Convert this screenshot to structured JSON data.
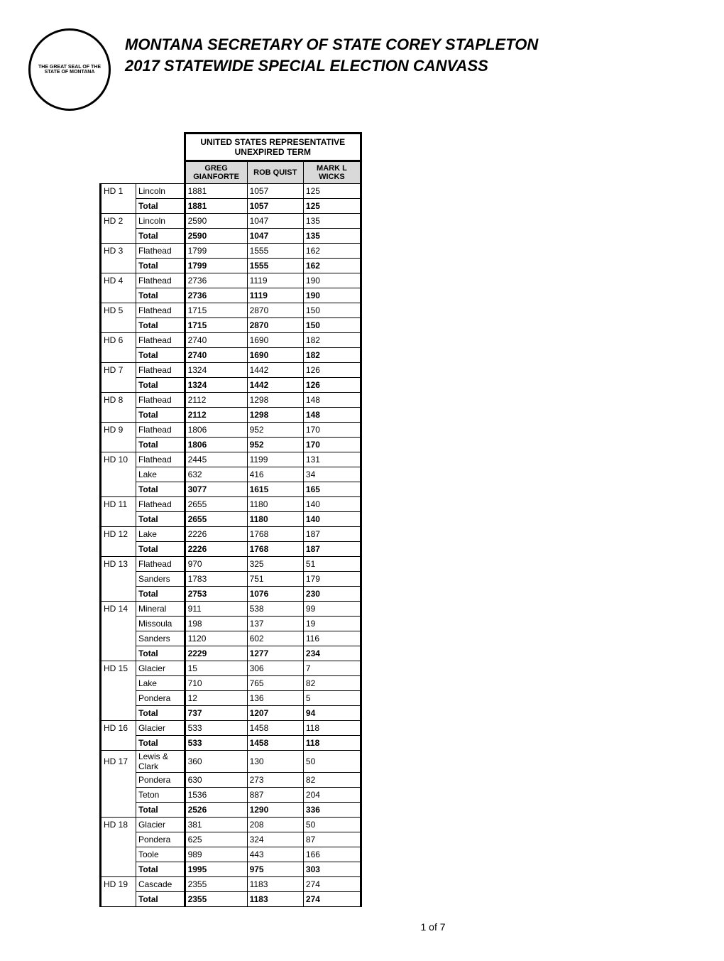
{
  "header": {
    "title_line1": "MONTANA SECRETARY OF STATE COREY STAPLETON",
    "title_line2": "2017 STATEWIDE SPECIAL ELECTION CANVASS",
    "seal_label": "State Seal"
  },
  "table": {
    "main_header_line1": "UNITED STATES REPRESENTATIVE",
    "main_header_line2": "UNEXPIRED TERM",
    "candidates": [
      {
        "line1": "GREG",
        "line2": "GIANFORTE"
      },
      {
        "line1": "ROB QUIST",
        "line2": ""
      },
      {
        "line1": "MARK L",
        "line2": "WICKS"
      }
    ],
    "districts": [
      {
        "id": "HD 1",
        "rows": [
          {
            "county": "Lincoln",
            "values": [
              "1881",
              "1057",
              "125"
            ]
          },
          {
            "county": "Total",
            "values": [
              "1881",
              "1057",
              "125"
            ],
            "is_total": true
          }
        ]
      },
      {
        "id": "HD 2",
        "rows": [
          {
            "county": "Lincoln",
            "values": [
              "2590",
              "1047",
              "135"
            ]
          },
          {
            "county": "Total",
            "values": [
              "2590",
              "1047",
              "135"
            ],
            "is_total": true
          }
        ]
      },
      {
        "id": "HD 3",
        "rows": [
          {
            "county": "Flathead",
            "values": [
              "1799",
              "1555",
              "162"
            ]
          },
          {
            "county": "Total",
            "values": [
              "1799",
              "1555",
              "162"
            ],
            "is_total": true
          }
        ]
      },
      {
        "id": "HD 4",
        "rows": [
          {
            "county": "Flathead",
            "values": [
              "2736",
              "1119",
              "190"
            ]
          },
          {
            "county": "Total",
            "values": [
              "2736",
              "1119",
              "190"
            ],
            "is_total": true
          }
        ]
      },
      {
        "id": "HD 5",
        "rows": [
          {
            "county": "Flathead",
            "values": [
              "1715",
              "2870",
              "150"
            ]
          },
          {
            "county": "Total",
            "values": [
              "1715",
              "2870",
              "150"
            ],
            "is_total": true
          }
        ]
      },
      {
        "id": "HD 6",
        "rows": [
          {
            "county": "Flathead",
            "values": [
              "2740",
              "1690",
              "182"
            ]
          },
          {
            "county": "Total",
            "values": [
              "2740",
              "1690",
              "182"
            ],
            "is_total": true
          }
        ]
      },
      {
        "id": "HD 7",
        "rows": [
          {
            "county": "Flathead",
            "values": [
              "1324",
              "1442",
              "126"
            ]
          },
          {
            "county": "Total",
            "values": [
              "1324",
              "1442",
              "126"
            ],
            "is_total": true
          }
        ]
      },
      {
        "id": "HD 8",
        "rows": [
          {
            "county": "Flathead",
            "values": [
              "2112",
              "1298",
              "148"
            ]
          },
          {
            "county": "Total",
            "values": [
              "2112",
              "1298",
              "148"
            ],
            "is_total": true
          }
        ]
      },
      {
        "id": "HD 9",
        "rows": [
          {
            "county": "Flathead",
            "values": [
              "1806",
              "952",
              "170"
            ]
          },
          {
            "county": "Total",
            "values": [
              "1806",
              "952",
              "170"
            ],
            "is_total": true
          }
        ]
      },
      {
        "id": "HD 10",
        "rows": [
          {
            "county": "Flathead",
            "values": [
              "2445",
              "1199",
              "131"
            ]
          },
          {
            "county": "Lake",
            "values": [
              "632",
              "416",
              "34"
            ]
          },
          {
            "county": "Total",
            "values": [
              "3077",
              "1615",
              "165"
            ],
            "is_total": true
          }
        ]
      },
      {
        "id": "HD 11",
        "rows": [
          {
            "county": "Flathead",
            "values": [
              "2655",
              "1180",
              "140"
            ]
          },
          {
            "county": "Total",
            "values": [
              "2655",
              "1180",
              "140"
            ],
            "is_total": true
          }
        ]
      },
      {
        "id": "HD 12",
        "rows": [
          {
            "county": "Lake",
            "values": [
              "2226",
              "1768",
              "187"
            ]
          },
          {
            "county": "Total",
            "values": [
              "2226",
              "1768",
              "187"
            ],
            "is_total": true
          }
        ]
      },
      {
        "id": "HD 13",
        "rows": [
          {
            "county": "Flathead",
            "values": [
              "970",
              "325",
              "51"
            ]
          },
          {
            "county": "Sanders",
            "values": [
              "1783",
              "751",
              "179"
            ]
          },
          {
            "county": "Total",
            "values": [
              "2753",
              "1076",
              "230"
            ],
            "is_total": true
          }
        ]
      },
      {
        "id": "HD 14",
        "rows": [
          {
            "county": "Mineral",
            "values": [
              "911",
              "538",
              "99"
            ]
          },
          {
            "county": "Missoula",
            "values": [
              "198",
              "137",
              "19"
            ]
          },
          {
            "county": "Sanders",
            "values": [
              "1120",
              "602",
              "116"
            ]
          },
          {
            "county": "Total",
            "values": [
              "2229",
              "1277",
              "234"
            ],
            "is_total": true
          }
        ]
      },
      {
        "id": "HD 15",
        "rows": [
          {
            "county": "Glacier",
            "values": [
              "15",
              "306",
              "7"
            ]
          },
          {
            "county": "Lake",
            "values": [
              "710",
              "765",
              "82"
            ]
          },
          {
            "county": "Pondera",
            "values": [
              "12",
              "136",
              "5"
            ]
          },
          {
            "county": "Total",
            "values": [
              "737",
              "1207",
              "94"
            ],
            "is_total": true
          }
        ]
      },
      {
        "id": "HD 16",
        "rows": [
          {
            "county": "Glacier",
            "values": [
              "533",
              "1458",
              "118"
            ]
          },
          {
            "county": "Total",
            "values": [
              "533",
              "1458",
              "118"
            ],
            "is_total": true
          }
        ]
      },
      {
        "id": "HD 17",
        "rows": [
          {
            "county": "Lewis & Clark",
            "values": [
              "360",
              "130",
              "50"
            ]
          },
          {
            "county": "Pondera",
            "values": [
              "630",
              "273",
              "82"
            ]
          },
          {
            "county": "Teton",
            "values": [
              "1536",
              "887",
              "204"
            ]
          },
          {
            "county": "Total",
            "values": [
              "2526",
              "1290",
              "336"
            ],
            "is_total": true
          }
        ]
      },
      {
        "id": "HD 18",
        "rows": [
          {
            "county": "Glacier",
            "values": [
              "381",
              "208",
              "50"
            ]
          },
          {
            "county": "Pondera",
            "values": [
              "625",
              "324",
              "87"
            ]
          },
          {
            "county": "Toole",
            "values": [
              "989",
              "443",
              "166"
            ]
          },
          {
            "county": "Total",
            "values": [
              "1995",
              "975",
              "303"
            ],
            "is_total": true
          }
        ]
      },
      {
        "id": "HD 19",
        "rows": [
          {
            "county": "Cascade",
            "values": [
              "2355",
              "1183",
              "274"
            ]
          },
          {
            "county": "Total",
            "values": [
              "2355",
              "1183",
              "274"
            ],
            "is_total": true
          }
        ]
      }
    ]
  },
  "footer": {
    "page_text": "1 of 7"
  },
  "styles": {
    "header_bg": "#d9d9d9",
    "border_color": "#000000",
    "background_color": "#ffffff",
    "title_fontsize": 22,
    "cell_fontsize": 12,
    "col_widths": {
      "district": 50,
      "county": 65,
      "candidate": 85
    }
  }
}
